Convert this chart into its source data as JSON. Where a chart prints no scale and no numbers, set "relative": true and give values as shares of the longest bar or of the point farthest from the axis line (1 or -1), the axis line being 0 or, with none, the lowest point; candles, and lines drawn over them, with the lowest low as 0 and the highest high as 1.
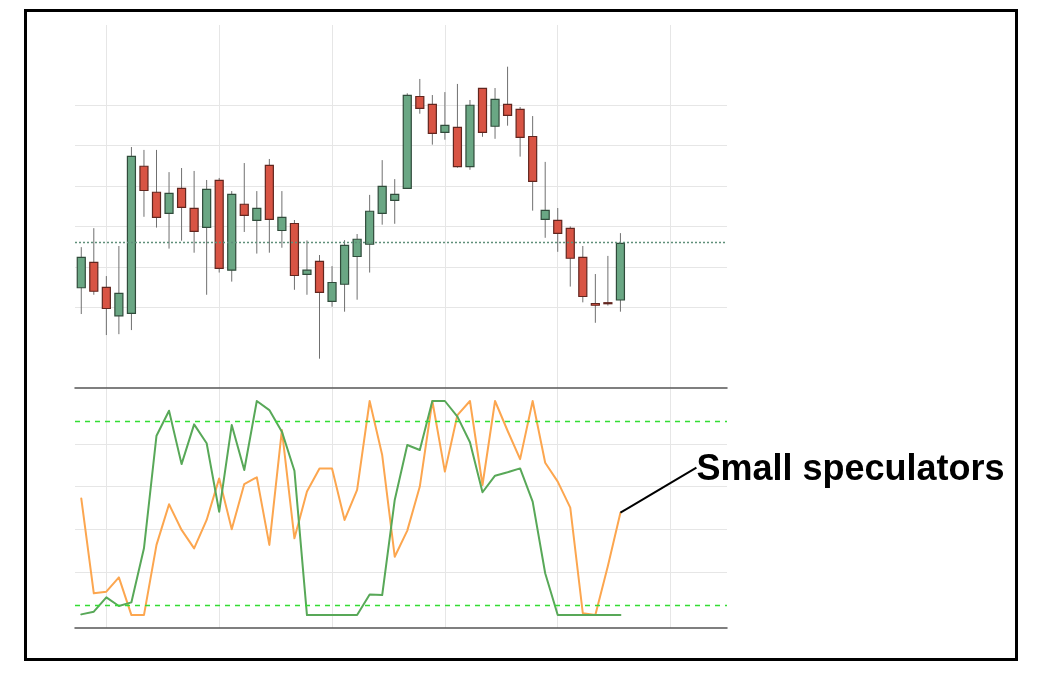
{
  "chart_data": [
    {
      "type": "candlestick",
      "relative": true,
      "grid": true,
      "tick_labels": false,
      "categories": [
        null,
        null,
        null,
        null,
        null,
        null,
        null,
        null,
        null,
        null,
        null,
        null,
        null,
        null,
        null,
        null,
        null,
        null,
        null,
        null,
        null,
        null,
        null,
        null,
        null,
        null,
        null,
        null,
        null,
        null,
        null,
        null,
        null,
        null,
        null,
        null,
        null,
        null,
        null,
        null,
        null,
        null,
        null,
        null
      ],
      "ohlc": [
        [
          0.243,
          0.382,
          0.153,
          0.347
        ],
        [
          0.33,
          0.447,
          0.219,
          0.231
        ],
        [
          0.244,
          0.283,
          0.081,
          0.172
        ],
        [
          0.147,
          0.386,
          0.084,
          0.224
        ],
        [
          0.155,
          0.725,
          0.098,
          0.693
        ],
        [
          0.659,
          0.715,
          0.486,
          0.576
        ],
        [
          0.57,
          0.715,
          0.449,
          0.484
        ],
        [
          0.498,
          0.639,
          0.377,
          0.566
        ],
        [
          0.583,
          0.653,
          0.404,
          0.518
        ],
        [
          0.515,
          0.643,
          0.363,
          0.436
        ],
        [
          0.45,
          0.612,
          0.219,
          0.58
        ],
        [
          0.611,
          0.619,
          0.295,
          0.309
        ],
        [
          0.303,
          0.574,
          0.264,
          0.563
        ],
        [
          0.529,
          0.67,
          0.434,
          0.491
        ],
        [
          0.474,
          0.574,
          0.36,
          0.515
        ],
        [
          0.662,
          0.684,
          0.363,
          0.477
        ],
        [
          0.439,
          0.574,
          0.38,
          0.484
        ],
        [
          0.463,
          0.475,
          0.236,
          0.285
        ],
        [
          0.289,
          0.405,
          0.219,
          0.303
        ],
        [
          0.333,
          0.355,
          0,
          0.227
        ],
        [
          0.196,
          0.317,
          0.178,
          0.261
        ],
        [
          0.255,
          0.406,
          0.161,
          0.388
        ],
        [
          0.35,
          0.427,
          0.202,
          0.409
        ],
        [
          0.392,
          0.561,
          0.295,
          0.505
        ],
        [
          0.498,
          0.68,
          0.459,
          0.59
        ],
        [
          0.542,
          0.615,
          0.462,
          0.563
        ],
        [
          0.583,
          0.909,
          0.583,
          0.902
        ],
        [
          0.898,
          0.958,
          0.839,
          0.857
        ],
        [
          0.871,
          0.903,
          0.733,
          0.772
        ],
        [
          0.775,
          0.913,
          0.75,
          0.799
        ],
        [
          0.792,
          0.941,
          0.654,
          0.658
        ],
        [
          0.658,
          0.886,
          0.647,
          0.868
        ],
        [
          0.926,
          0.926,
          0.76,
          0.775
        ],
        [
          0.796,
          0.927,
          0.753,
          0.888
        ],
        [
          0.871,
          1.0,
          0.798,
          0.833
        ],
        [
          0.854,
          0.862,
          0.692,
          0.758
        ],
        [
          0.761,
          0.831,
          0.507,
          0.607
        ],
        [
          0.477,
          0.674,
          0.414,
          0.508
        ],
        [
          0.474,
          0.516,
          0.366,
          0.429
        ],
        [
          0.446,
          0.453,
          0.247,
          0.344
        ],
        [
          0.347,
          0.386,
          0.193,
          0.213
        ],
        [
          0.189,
          0.29,
          0.123,
          0.183
        ],
        [
          0.19,
          0.352,
          0.182,
          0.189
        ],
        [
          0.201,
          0.43,
          0.161,
          0.395
        ]
      ],
      "colors": [
        "#6aa784",
        "#d85444",
        "#d85444",
        "#6aa784",
        "#6aa784",
        "#d85444",
        "#d85444",
        "#6aa784",
        "#d85444",
        "#d85444",
        "#6aa784",
        "#d85444",
        "#6aa784",
        "#d85444",
        "#6aa784",
        "#d85444",
        "#6aa784",
        "#d85444",
        "#6aa784",
        "#d85444",
        "#6aa784",
        "#6aa784",
        "#6aa784",
        "#6aa784",
        "#6aa784",
        "#6aa784",
        "#6aa784",
        "#d85444",
        "#d85444",
        "#6aa784",
        "#d85444",
        "#6aa784",
        "#d85444",
        "#6aa784",
        "#d85444",
        "#d85444",
        "#d85444",
        "#6aa784",
        "#d85444",
        "#d85444",
        "#d85444",
        "#d85444",
        "#d85444",
        "#6aa784"
      ],
      "ref_lines": [
        {
          "axis": "y",
          "value": 0.395,
          "color": "#5f8f7a",
          "line_style": "dotted"
        }
      ]
    },
    {
      "type": "line",
      "relative": true,
      "grid": true,
      "tick_labels": false,
      "marker": "none",
      "categories": [
        null,
        null,
        null,
        null,
        null,
        null,
        null,
        null,
        null,
        null,
        null,
        null,
        null,
        null,
        null,
        null,
        null,
        null,
        null,
        null,
        null,
        null,
        null,
        null,
        null,
        null,
        null,
        null,
        null,
        null,
        null,
        null,
        null,
        null,
        null,
        null,
        null,
        null,
        null,
        null,
        null,
        null,
        null,
        null
      ],
      "series": [
        {
          "name": "Small speculators",
          "color": "#fca64f",
          "values": [
            0.571,
            0.153,
            0.16,
            0.223,
            0.057,
            0.057,
            0.366,
            0.545,
            0.432,
            0.351,
            0.476,
            0.659,
            0.435,
            0.634,
            0.664,
            0.366,
            0.872,
            0.395,
            0.601,
            0.703,
            0.703,
            0.476,
            0.608,
            1.0,
            0.762,
            0.314,
            0.429,
            0.623,
            1.0,
            0.689,
            0.938,
            1.0,
            0.63,
            1.0,
            0.869,
            0.744,
            1.0,
            0.728,
            0.645,
            0.53,
            0.065,
            0.057,
            0.273,
            0.508
          ]
        },
        {
          "color": "#58a858",
          "values": [
            0.06,
            0.072,
            0.135,
            0.097,
            0.113,
            0.351,
            0.847,
            0.957,
            0.722,
            0.897,
            0.814,
            0.512,
            0.894,
            0.696,
            1.0,
            0.96,
            0.865,
            0.693,
            0.057,
            0.057,
            0.057,
            0.057,
            0.057,
            0.148,
            0.145,
            0.564,
            0.806,
            0.784,
            1.0,
            1.0,
            0.931,
            0.818,
            0.598,
            0.671,
            0.686,
            0.703,
            0.557,
            0.241,
            0.057,
            0.057,
            0.057,
            0.057,
            0.057,
            0.057
          ]
        }
      ],
      "ref_lines": [
        {
          "axis": "y",
          "value": 0.906,
          "color": "#33dd33",
          "line_style": "dashed"
        },
        {
          "axis": "y",
          "value": 0.104,
          "color": "#33dd33",
          "line_style": "dashed"
        }
      ]
    }
  ]
}
